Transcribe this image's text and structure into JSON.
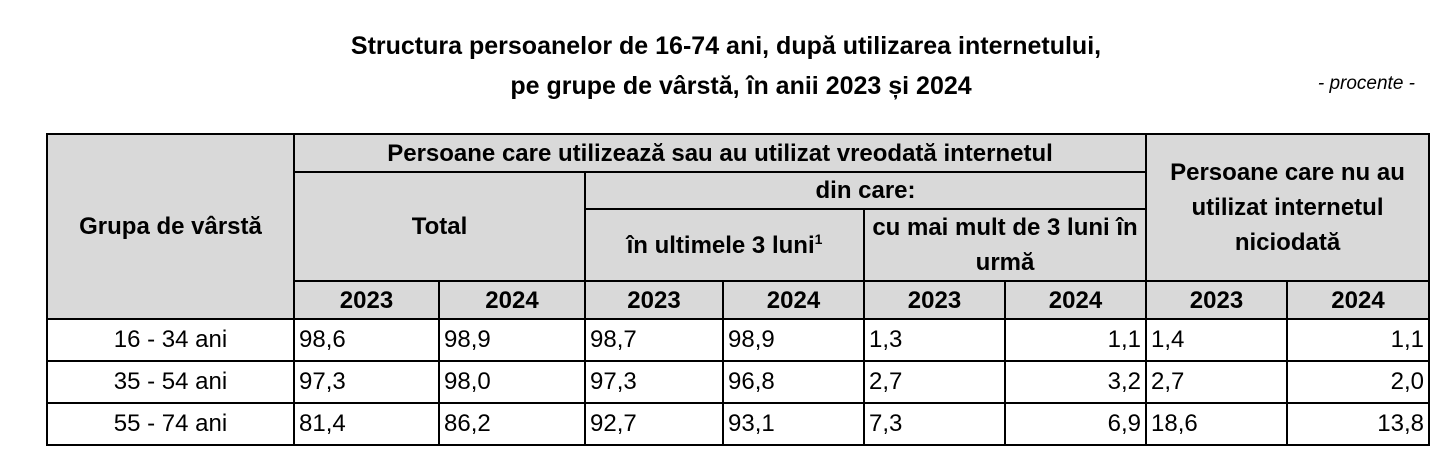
{
  "title": {
    "line1": "Structura persoanelor de 16-74 ani, după utilizarea internetului,",
    "line2": "pe grupe de vârstă, în anii 2023 și 2024"
  },
  "unit_note": "- procente -",
  "table": {
    "header": {
      "age_group": "Grupa de  vârstă",
      "users_group": "Persoane care utilizează sau au utilizat vreodată internetul",
      "total": "Total",
      "of_which": "din care:",
      "last3_label": "în ultimele 3 luni",
      "last3_footnote": "1",
      "more3": "cu mai mult de 3 luni în urmă",
      "never": "Persoane care nu au utilizat internetul niciodată",
      "years": [
        "2023",
        "2024",
        "2023",
        "2024",
        "2023",
        "2024",
        "2023",
        "2024"
      ]
    },
    "rows": [
      {
        "group": "16 - 34 ani",
        "values": [
          "98,6",
          "98,9",
          "98,7",
          "98,9",
          "1,3",
          "1,1",
          "1,4",
          "1,1"
        ]
      },
      {
        "group": "35 - 54 ani",
        "values": [
          "97,3",
          "98,0",
          "97,3",
          "96,8",
          "2,7",
          "3,2",
          "2,7",
          "2,0"
        ]
      },
      {
        "group": "55 - 74 ani",
        "values": [
          "81,4",
          "86,2",
          "92,7",
          "93,1",
          "7,3",
          "6,9",
          "18,6",
          "13,8"
        ]
      }
    ]
  }
}
